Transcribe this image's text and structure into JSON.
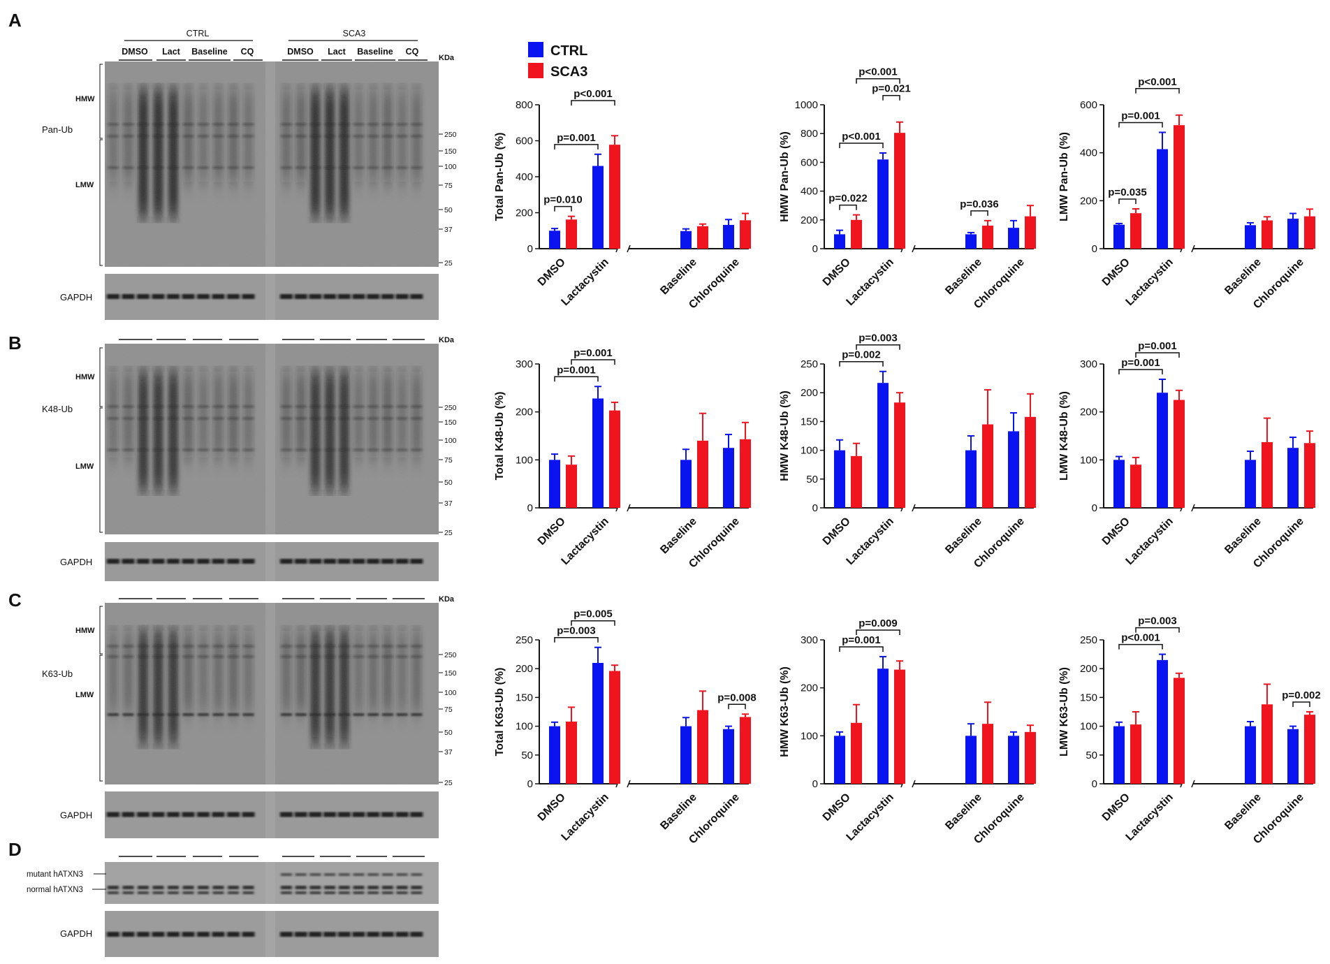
{
  "figure": {
    "panel_letters": [
      "A",
      "B",
      "C",
      "D"
    ],
    "legend": [
      {
        "label": "CTRL",
        "color": "#0a14f0"
      },
      {
        "label": "SCA3",
        "color": "#f0141e"
      }
    ]
  },
  "blots": {
    "group_labels": [
      "CTRL",
      "SCA3"
    ],
    "lane_labels": [
      "DMSO",
      "Lact",
      "Baseline",
      "CQ",
      "DMSO",
      "Lact",
      "Baseline",
      "CQ"
    ],
    "kda_label": "KDa",
    "loading_control": "GAPDH",
    "panels": [
      {
        "antibody": "Pan-Ub",
        "hmw": "HMW",
        "lmw": "LMW",
        "markers": [
          "250",
          "150",
          "100",
          "75",
          "50",
          "37",
          "25"
        ]
      },
      {
        "antibody": "K48-Ub",
        "hmw": "HMW",
        "lmw": "LMW",
        "markers": [
          "250",
          "150",
          "100",
          "75",
          "50",
          "37",
          "25"
        ]
      },
      {
        "antibody": "K63-Ub",
        "hmw": "HMW",
        "lmw": "LMW",
        "markers": [
          "250",
          "150",
          "100",
          "75",
          "50",
          "37",
          "25"
        ]
      },
      {
        "bands": [
          "mutant hATXN3",
          "normal hATXN3"
        ]
      }
    ]
  },
  "chart_data": [
    {
      "type": "bar",
      "panel": "A",
      "ylabel": "Total Pan-Ub (%)",
      "ylim": [
        0,
        800
      ],
      "yticks": [
        0,
        200,
        400,
        600,
        800
      ],
      "categories": [
        "DMSO",
        "Lactacystin",
        "Baseline",
        "Chloroquine"
      ],
      "series": [
        {
          "name": "CTRL",
          "values": [
            100,
            460,
            98,
            132
          ],
          "errors": [
            12,
            65,
            12,
            30
          ]
        },
        {
          "name": "SCA3",
          "values": [
            162,
            578,
            125,
            158
          ],
          "errors": [
            18,
            50,
            12,
            38
          ]
        }
      ],
      "annotations": [
        {
          "text": "p=0.010",
          "from": [
            0,
            0
          ],
          "to": [
            0,
            1
          ],
          "level": 1
        },
        {
          "text": "p=0.001",
          "from": [
            0,
            0
          ],
          "to": [
            1,
            0
          ],
          "level": 2
        },
        {
          "text": "p<0.001",
          "from": [
            0,
            1
          ],
          "to": [
            1,
            1
          ],
          "level": 3
        }
      ]
    },
    {
      "type": "bar",
      "panel": "A",
      "ylabel": "HMW Pan-Ub (%)",
      "ylim": [
        0,
        1000
      ],
      "yticks": [
        0,
        200,
        400,
        600,
        800,
        1000
      ],
      "categories": [
        "DMSO",
        "Lactacystin",
        "Baseline",
        "Chloroquine"
      ],
      "series": [
        {
          "name": "CTRL",
          "values": [
            100,
            620,
            100,
            145
          ],
          "errors": [
            28,
            45,
            12,
            50
          ]
        },
        {
          "name": "SCA3",
          "values": [
            200,
            805,
            160,
            225
          ],
          "errors": [
            35,
            75,
            35,
            75
          ]
        }
      ],
      "annotations": [
        {
          "text": "p=0.022",
          "from": [
            0,
            0
          ],
          "to": [
            0,
            1
          ],
          "level": 1
        },
        {
          "text": "p<0.001",
          "from": [
            0,
            0
          ],
          "to": [
            1,
            0
          ],
          "level": 2
        },
        {
          "text": "p=0.021",
          "from": [
            1,
            0
          ],
          "to": [
            1,
            1
          ],
          "level": 3
        },
        {
          "text": "p<0.001",
          "from": [
            0,
            1
          ],
          "to": [
            1,
            1
          ],
          "level": 4
        },
        {
          "text": "p=0.036",
          "from": [
            2,
            0
          ],
          "to": [
            2,
            1
          ],
          "level": 1
        }
      ]
    },
    {
      "type": "bar",
      "panel": "A",
      "ylabel": "LMW Pan-Ub (%)",
      "ylim": [
        0,
        600
      ],
      "yticks": [
        0,
        200,
        400,
        600
      ],
      "categories": [
        "DMSO",
        "Lactacystin",
        "Baseline",
        "Chloroquine"
      ],
      "series": [
        {
          "name": "CTRL",
          "values": [
            100,
            415,
            98,
            125
          ],
          "errors": [
            5,
            70,
            10,
            22
          ]
        },
        {
          "name": "SCA3",
          "values": [
            148,
            515,
            118,
            135
          ],
          "errors": [
            18,
            42,
            15,
            30
          ]
        }
      ],
      "annotations": [
        {
          "text": "p=0.035",
          "from": [
            0,
            0
          ],
          "to": [
            0,
            1
          ],
          "level": 1
        },
        {
          "text": "p=0.001",
          "from": [
            0,
            0
          ],
          "to": [
            1,
            0
          ],
          "level": 2
        },
        {
          "text": "p<0.001",
          "from": [
            0,
            1
          ],
          "to": [
            1,
            1
          ],
          "level": 3
        }
      ]
    },
    {
      "type": "bar",
      "panel": "B",
      "ylabel": "Total K48-Ub (%)",
      "ylim": [
        0,
        300
      ],
      "yticks": [
        0,
        100,
        200,
        300
      ],
      "categories": [
        "DMSO",
        "Lactacystin",
        "Baseline",
        "Chloroquine"
      ],
      "series": [
        {
          "name": "CTRL",
          "values": [
            100,
            228,
            100,
            125
          ],
          "errors": [
            12,
            25,
            22,
            28
          ]
        },
        {
          "name": "SCA3",
          "values": [
            90,
            203,
            140,
            143
          ],
          "errors": [
            18,
            17,
            57,
            35
          ]
        }
      ],
      "annotations": [
        {
          "text": "p=0.001",
          "from": [
            0,
            0
          ],
          "to": [
            1,
            0
          ],
          "level": 2
        },
        {
          "text": "p=0.001",
          "from": [
            0,
            1
          ],
          "to": [
            1,
            1
          ],
          "level": 3
        }
      ]
    },
    {
      "type": "bar",
      "panel": "B",
      "ylabel": "HMW K48-Ub (%)",
      "ylim": [
        0,
        250
      ],
      "yticks": [
        0,
        50,
        100,
        150,
        200,
        250
      ],
      "categories": [
        "DMSO",
        "Lactacystin",
        "Baseline",
        "Chloroquine"
      ],
      "series": [
        {
          "name": "CTRL",
          "values": [
            100,
            217,
            100,
            133
          ],
          "errors": [
            18,
            20,
            25,
            32
          ]
        },
        {
          "name": "SCA3",
          "values": [
            90,
            183,
            145,
            158
          ],
          "errors": [
            22,
            17,
            60,
            40
          ]
        }
      ],
      "annotations": [
        {
          "text": "p=0.002",
          "from": [
            0,
            0
          ],
          "to": [
            1,
            0
          ],
          "level": 2
        },
        {
          "text": "p=0.003",
          "from": [
            0,
            1
          ],
          "to": [
            1,
            1
          ],
          "level": 3
        }
      ]
    },
    {
      "type": "bar",
      "panel": "B",
      "ylabel": "LMW K48-Ub (%)",
      "ylim": [
        0,
        300
      ],
      "yticks": [
        0,
        100,
        200,
        300
      ],
      "categories": [
        "DMSO",
        "Lactacystin",
        "Baseline",
        "Chloroquine"
      ],
      "series": [
        {
          "name": "CTRL",
          "values": [
            100,
            240,
            100,
            125
          ],
          "errors": [
            7,
            28,
            18,
            22
          ]
        },
        {
          "name": "SCA3",
          "values": [
            90,
            225,
            137,
            135
          ],
          "errors": [
            15,
            20,
            50,
            25
          ]
        }
      ],
      "annotations": [
        {
          "text": "p=0.001",
          "from": [
            0,
            0
          ],
          "to": [
            1,
            0
          ],
          "level": 2
        },
        {
          "text": "p=0.001",
          "from": [
            0,
            1
          ],
          "to": [
            1,
            1
          ],
          "level": 3
        }
      ]
    },
    {
      "type": "bar",
      "panel": "C",
      "ylabel": "Total K63-Ub (%)",
      "ylim": [
        0,
        250
      ],
      "yticks": [
        0,
        50,
        100,
        150,
        200,
        250
      ],
      "categories": [
        "DMSO",
        "Lactacystin",
        "Baseline",
        "Chloroquine"
      ],
      "series": [
        {
          "name": "CTRL",
          "values": [
            100,
            210,
            100,
            95
          ],
          "errors": [
            7,
            27,
            15,
            5
          ]
        },
        {
          "name": "SCA3",
          "values": [
            108,
            196,
            128,
            116
          ],
          "errors": [
            25,
            10,
            33,
            5
          ]
        }
      ],
      "annotations": [
        {
          "text": "p=0.003",
          "from": [
            0,
            0
          ],
          "to": [
            1,
            0
          ],
          "level": 2
        },
        {
          "text": "p=0.005",
          "from": [
            0,
            1
          ],
          "to": [
            1,
            1
          ],
          "level": 3
        },
        {
          "text": "p=0.008",
          "from": [
            3,
            0
          ],
          "to": [
            3,
            1
          ],
          "level": 1
        }
      ]
    },
    {
      "type": "bar",
      "panel": "C",
      "ylabel": "HMW K63-Ub (%)",
      "ylim": [
        0,
        300
      ],
      "yticks": [
        0,
        100,
        200,
        300
      ],
      "categories": [
        "DMSO",
        "Lactacystin",
        "Baseline",
        "Chloroquine"
      ],
      "series": [
        {
          "name": "CTRL",
          "values": [
            100,
            240,
            100,
            100
          ],
          "errors": [
            8,
            25,
            25,
            8
          ]
        },
        {
          "name": "SCA3",
          "values": [
            127,
            238,
            125,
            108
          ],
          "errors": [
            38,
            18,
            45,
            14
          ]
        }
      ],
      "annotations": [
        {
          "text": "p=0.001",
          "from": [
            0,
            0
          ],
          "to": [
            1,
            0
          ],
          "level": 2
        },
        {
          "text": "p=0.009",
          "from": [
            0,
            1
          ],
          "to": [
            1,
            1
          ],
          "level": 3
        }
      ]
    },
    {
      "type": "bar",
      "panel": "C",
      "ylabel": "LMW K63-Ub (%)",
      "ylim": [
        0,
        250
      ],
      "yticks": [
        0,
        50,
        100,
        150,
        200,
        250
      ],
      "categories": [
        "DMSO",
        "Lactacystin",
        "Baseline",
        "Chloroquine"
      ],
      "series": [
        {
          "name": "CTRL",
          "values": [
            100,
            215,
            100,
            95
          ],
          "errors": [
            7,
            10,
            8,
            5
          ]
        },
        {
          "name": "SCA3",
          "values": [
            103,
            184,
            138,
            120
          ],
          "errors": [
            22,
            8,
            35,
            5
          ]
        }
      ],
      "annotations": [
        {
          "text": "p<0.001",
          "from": [
            0,
            0
          ],
          "to": [
            1,
            0
          ],
          "level": 2
        },
        {
          "text": "p=0.003",
          "from": [
            0,
            1
          ],
          "to": [
            1,
            1
          ],
          "level": 3
        },
        {
          "text": "p=0.002",
          "from": [
            3,
            0
          ],
          "to": [
            3,
            1
          ],
          "level": 1
        }
      ]
    }
  ]
}
